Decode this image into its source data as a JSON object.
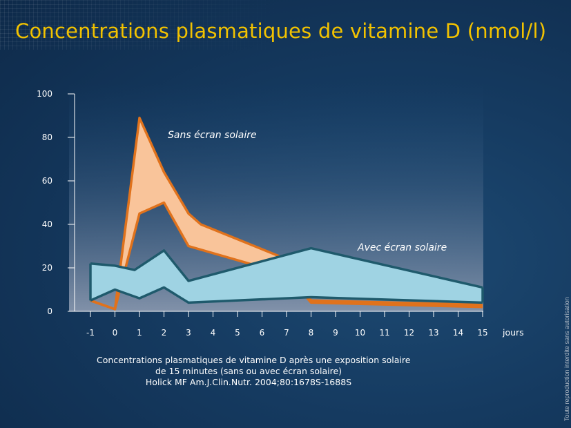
{
  "slide": {
    "title": "Concentrations plasmatiques de vitamine D (nmol/l)",
    "caption_lines": [
      "Concentrations plasmatiques de vitamine D après une exposition solaire",
      "de 15 minutes (sans ou avec écran solaire)",
      "Holick MF      Am.J.Clin.Nutr.  2004;80:1678S-1688S"
    ],
    "side_note": "Toute reproduction interdite sans autorisation"
  },
  "colors": {
    "title": "#f2c200",
    "orange_fill": "#f9c49a",
    "orange_stroke": "#e0721c",
    "blue_fill": "#9fd3e3",
    "blue_stroke": "#1f5a6c",
    "axis": "#ffffff"
  },
  "chart_data": {
    "type": "area",
    "y_ticks": [
      0,
      20,
      40,
      60,
      80,
      100
    ],
    "x_ticks": [
      -1,
      0,
      1,
      2,
      3,
      4,
      5,
      6,
      7,
      8,
      9,
      10,
      11,
      12,
      13,
      14,
      15
    ],
    "x_unit_label": "jours",
    "ylim": [
      0,
      100
    ],
    "xlim": [
      -1,
      15
    ],
    "series": [
      {
        "name": "Sans écran solaire",
        "upper": [
          [
            -1,
            5
          ],
          [
            0,
            1
          ],
          [
            1,
            89
          ],
          [
            2,
            64
          ],
          [
            3,
            45
          ],
          [
            3.5,
            40
          ],
          [
            7,
            24
          ],
          [
            8,
            5
          ],
          [
            15,
            3
          ]
        ],
        "lower": [
          [
            -1,
            5
          ],
          [
            0,
            1
          ],
          [
            1,
            45
          ],
          [
            1.6,
            48
          ],
          [
            2,
            50
          ],
          [
            3,
            30
          ],
          [
            7,
            17
          ],
          [
            8,
            4
          ],
          [
            15,
            2
          ]
        ]
      },
      {
        "name": "Avec écran solaire",
        "upper": [
          [
            -1,
            22
          ],
          [
            0,
            21
          ],
          [
            0.8,
            19
          ],
          [
            2,
            28
          ],
          [
            3,
            14
          ],
          [
            8,
            29
          ],
          [
            15,
            11
          ]
        ],
        "lower": [
          [
            -1,
            5
          ],
          [
            0,
            10
          ],
          [
            1,
            6
          ],
          [
            2,
            11
          ],
          [
            3,
            4
          ],
          [
            8,
            6.5
          ],
          [
            15,
            4
          ]
        ]
      }
    ]
  }
}
